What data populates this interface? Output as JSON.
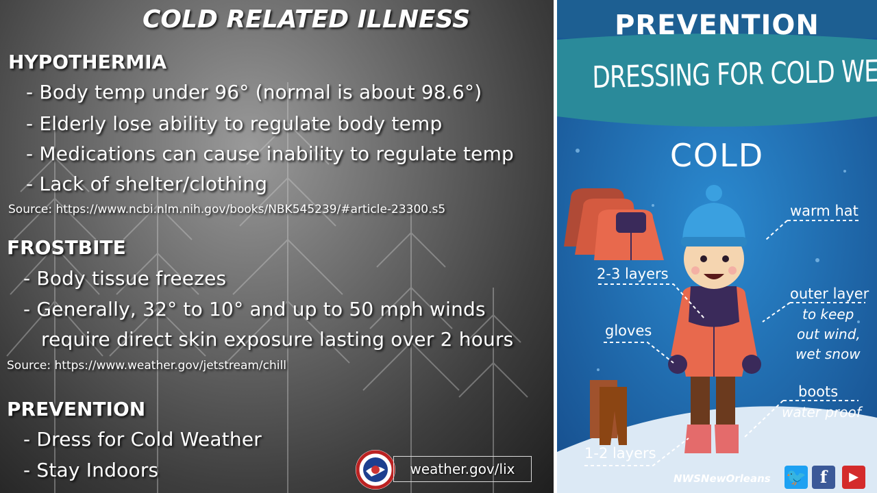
{
  "left": {
    "title": "COLD RELATED ILLNESS",
    "hypothermia": {
      "heading": "HYPOTHERMIA",
      "bullets": [
        "-  Body temp under 96° (normal is about 98.6°)",
        "-  Elderly lose ability to regulate body temp",
        "-  Medications can cause inability to regulate temp",
        "-  Lack of shelter/clothing"
      ],
      "source": "Source: https://www.ncbi.nlm.nih.gov/books/NBK545239/#article-23300.s5"
    },
    "frostbite": {
      "heading": "FROSTBITE",
      "bullets": [
        "-  Body tissue freezes",
        "-  Generally, 32° to 10° and up to 50 mph winds",
        "require direct skin exposure lasting over 2 hours"
      ],
      "source": "Source: https://www.weather.gov/jetstream/chill"
    },
    "prevention": {
      "heading": "PREVENTION",
      "bullets": [
        "-  Dress for Cold Weather",
        "-  Stay Indoors"
      ]
    },
    "link": "weather.gov/lix",
    "seal_text": "NATIONAL WEATHER SERVICE"
  },
  "right": {
    "header": "PREVENTION",
    "subtitle": "DRESSING FOR COLD WEATHER",
    "cold": "COLD",
    "labels": {
      "hat": "warm hat",
      "layers": "2-3 layers",
      "outer": "outer layer",
      "outer_sub1": "to keep",
      "outer_sub2": "out wind,",
      "outer_sub3": "wet snow",
      "gloves": "gloves",
      "boots": "boots",
      "boots_sub": "water proof",
      "pants": "1-2 layers"
    },
    "footer_brand": "NWSNewOrleans",
    "social_icons": [
      "twitter-icon",
      "facebook-icon",
      "youtube-icon"
    ],
    "colors": {
      "background": "#1f6fae",
      "banner": "#2a8a9a",
      "header_band": "#1d5f92",
      "jacket": "#e8694d",
      "vest": "#3a2a5a",
      "hat": "#3aa0e0",
      "boots": "#e46b6b"
    }
  }
}
